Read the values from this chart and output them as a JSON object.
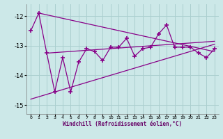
{
  "xlabel": "Windchill (Refroidissement éolien,°C)",
  "bg_color": "#cce8e8",
  "grid_color": "#aacfcf",
  "line_color": "#880088",
  "x": [
    0,
    1,
    2,
    3,
    4,
    5,
    6,
    7,
    8,
    9,
    10,
    11,
    12,
    13,
    14,
    15,
    16,
    17,
    18,
    19,
    20,
    21,
    22,
    23
  ],
  "y_main": [
    -12.5,
    -11.9,
    -13.25,
    -14.55,
    -13.4,
    -14.55,
    -13.55,
    -13.1,
    -13.2,
    -13.5,
    -13.05,
    -13.05,
    -12.75,
    -13.35,
    -13.1,
    -13.05,
    -12.6,
    -12.3,
    -13.05,
    -13.05,
    -13.05,
    -13.25,
    -13.4,
    -13.1
  ],
  "trend1_x": [
    1,
    23
  ],
  "trend1_y": [
    -11.9,
    -13.2
  ],
  "trend2_x": [
    0,
    23
  ],
  "trend2_y": [
    -14.8,
    -12.95
  ],
  "trend3_x": [
    2,
    23
  ],
  "trend3_y": [
    -13.25,
    -12.85
  ],
  "ylim": [
    -15.3,
    -11.6
  ],
  "xlim": [
    -0.5,
    23.5
  ],
  "yticks": [
    -15,
    -14,
    -13,
    -12
  ],
  "xticks": [
    0,
    1,
    2,
    3,
    4,
    5,
    6,
    7,
    8,
    9,
    10,
    11,
    12,
    13,
    14,
    15,
    16,
    17,
    18,
    19,
    20,
    21,
    22,
    23
  ]
}
